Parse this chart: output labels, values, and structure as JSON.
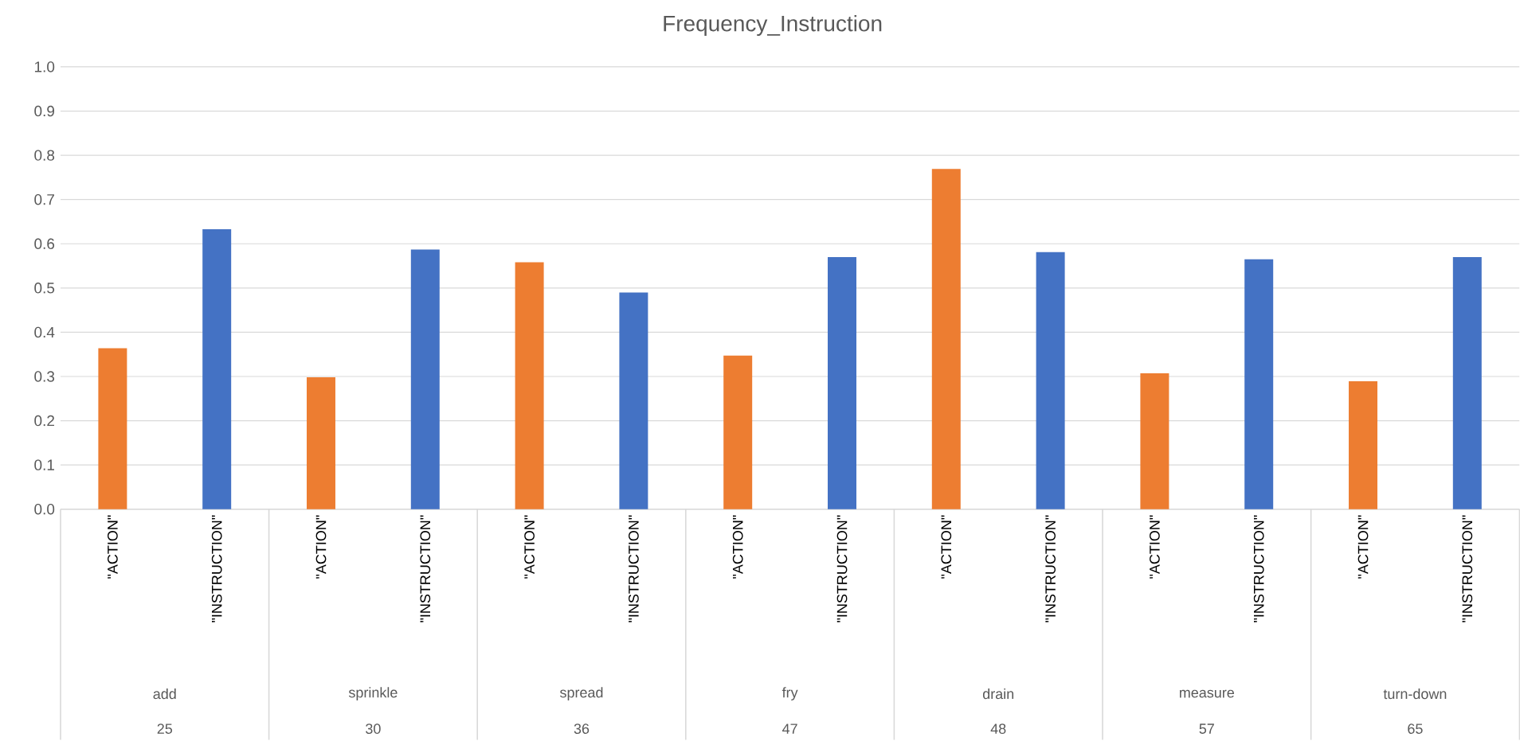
{
  "chart_data": {
    "type": "bar",
    "title": "Frequency_Instruction",
    "categories": [
      "\"ACTION\"",
      "\"INSTRUCTION\"",
      "\"ACTION\"",
      "\"INSTRUCTION\"",
      "\"ACTION\"",
      "\"INSTRUCTION\"",
      "\"ACTION\"",
      "\"INSTRUCTION\"",
      "\"ACTION\"",
      "\"INSTRUCTION\"",
      "\"ACTION\"",
      "\"INSTRUCTION\"",
      "\"ACTION\"",
      "\"INSTRUCTION\""
    ],
    "values": [
      0.364,
      0.633,
      0.298,
      0.587,
      0.558,
      0.49,
      0.347,
      0.57,
      0.769,
      0.581,
      0.307,
      0.565,
      0.289,
      0.57
    ],
    "colors": [
      "#ed7d31",
      "#4472c4",
      "#ed7d31",
      "#4472c4",
      "#ed7d31",
      "#4472c4",
      "#ed7d31",
      "#4472c4",
      "#ed7d31",
      "#4472c4",
      "#ed7d31",
      "#4472c4",
      "#ed7d31",
      "#4472c4"
    ],
    "ylim": [
      0,
      1
    ],
    "yticks": [
      {
        "value": 0,
        "label": "0.0"
      },
      0.1,
      0.2,
      0.3,
      0.4,
      0.5,
      0.6,
      0.7,
      0.8,
      0.9,
      {
        "value": 1,
        "label": "1.0"
      }
    ],
    "grid": "y",
    "annotations": [
      "add",
      "25",
      "sprinkle",
      "30",
      "spread",
      "36",
      "fry",
      "47",
      "drain",
      "48",
      "measure",
      "57",
      "turn-down",
      "65"
    ]
  }
}
